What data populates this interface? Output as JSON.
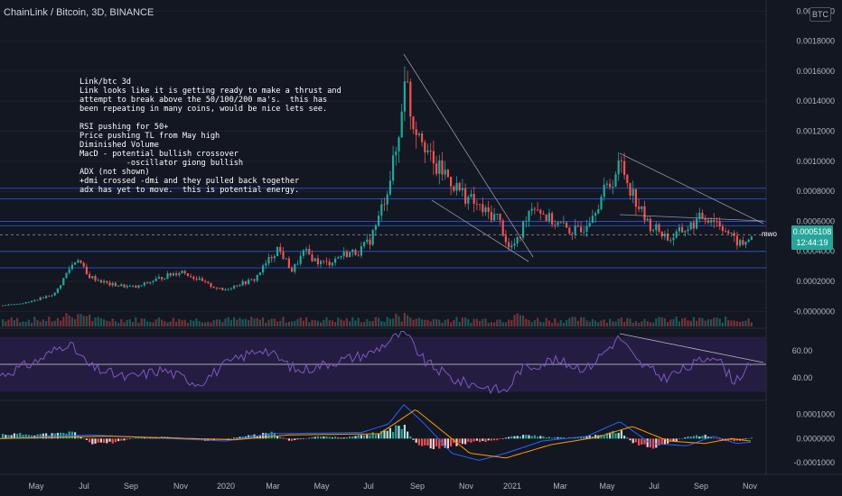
{
  "header": {
    "symbol": "ChainLink / Bitcoin, 3D, BINANCE",
    "currency": "BTC"
  },
  "note_lines": [
    "Link/btc 3d",
    "Link looks like it is getting ready to make a thrust and",
    "attempt to break above the 50/100/200 ma's.  this has",
    "been repeating in many coins, would be nice lets see.",
    "",
    "RSI pushing for 50+",
    "Price pushing TL from May high",
    "Diminished Volume",
    "MacD - potential bullish crossover",
    "          -oscillator giong bullish",
    "ADX (not shown)",
    "+dmi crossed -dmi and they pulled back together",
    "adx has yet to move.  this is potential energy."
  ],
  "price_badge": {
    "value": "0.0005108",
    "countdown": "12:44:19",
    "color": "#26a69a"
  },
  "mwo_label": "mwo",
  "colors": {
    "background": "#131722",
    "up": "#26a69a",
    "down": "#ef5350",
    "rsi": "#7e57c2",
    "rsi_band": "#2a1f4a",
    "macd": "#2962ff",
    "signal": "#ff9800",
    "hline": "#2962ff",
    "trend": "#b2b5be"
  },
  "chart_data": [
    {
      "type": "candlestick",
      "panel": "price",
      "y_ticks": [
        "0.0020000",
        "0.0018000",
        "0.0016000",
        "0.0014000",
        "0.0012000",
        "0.0010000",
        "0.0008000",
        "0.0006000",
        "0.0004000",
        "0.0002000",
        "-0.0000000"
      ],
      "x_tick_labels": [
        "May",
        "Jul",
        "Sep",
        "Nov",
        "2020",
        "Mar",
        "May",
        "Jul",
        "Sep",
        "Nov",
        "2021",
        "Mar",
        "May",
        "Jul",
        "Sep",
        "Nov"
      ],
      "ylim": [
        -0.0001,
        0.00205
      ],
      "close_path": [
        [
          0,
          4e-05
        ],
        [
          30,
          6e-05
        ],
        [
          60,
          0.00012
        ],
        [
          75,
          0.00028
        ],
        [
          85,
          0.00036
        ],
        [
          95,
          0.00024
        ],
        [
          120,
          0.00018
        ],
        [
          150,
          0.00016
        ],
        [
          175,
          0.00022
        ],
        [
          200,
          0.00027
        ],
        [
          225,
          0.00019
        ],
        [
          245,
          0.00014
        ],
        [
          262,
          0.00018
        ],
        [
          280,
          0.00021
        ],
        [
          296,
          0.00034
        ],
        [
          306,
          0.00042
        ],
        [
          312,
          0.00037
        ],
        [
          322,
          0.00027
        ],
        [
          336,
          0.0004
        ],
        [
          350,
          0.00033
        ],
        [
          362,
          0.00032
        ],
        [
          378,
          0.00038
        ],
        [
          396,
          0.0004
        ],
        [
          408,
          0.00047
        ],
        [
          418,
          0.00062
        ],
        [
          428,
          0.00083
        ],
        [
          440,
          0.00113
        ],
        [
          447,
          0.00162
        ],
        [
          455,
          0.00126
        ],
        [
          465,
          0.00121
        ],
        [
          478,
          0.00096
        ],
        [
          490,
          0.00093
        ],
        [
          505,
          0.00082
        ],
        [
          520,
          0.00074
        ],
        [
          535,
          0.00066
        ],
        [
          550,
          0.00063
        ],
        [
          562,
          0.00042
        ],
        [
          573,
          0.00047
        ],
        [
          582,
          0.00066
        ],
        [
          590,
          0.00072
        ],
        [
          605,
          0.00062
        ],
        [
          617,
          0.00058
        ],
        [
          630,
          0.00054
        ],
        [
          642,
          0.00053
        ],
        [
          654,
          0.00066
        ],
        [
          668,
          0.0008
        ],
        [
          676,
          0.00087
        ],
        [
          686,
          0.00099
        ],
        [
          694,
          0.00086
        ],
        [
          705,
          0.00071
        ],
        [
          716,
          0.00058
        ],
        [
          728,
          0.00054
        ],
        [
          740,
          0.00048
        ],
        [
          752,
          0.00053
        ],
        [
          764,
          0.00057
        ],
        [
          776,
          0.00063
        ],
        [
          788,
          0.00062
        ],
        [
          800,
          0.00056
        ],
        [
          812,
          0.00047
        ],
        [
          822,
          0.00044
        ],
        [
          830,
          0.00051
        ]
      ],
      "horizontal_levels": [
        0.00082,
        0.00075,
        0.0006,
        0.00057,
        0.0004,
        0.00029
      ],
      "last_price": 0.0005108
    },
    {
      "type": "line",
      "panel": "rsi",
      "y_ticks": [
        "60.00",
        "40.00"
      ],
      "ylim": [
        25,
        75
      ],
      "band": [
        30,
        70
      ],
      "midline": 50,
      "path": [
        [
          0,
          42
        ],
        [
          40,
          52
        ],
        [
          75,
          66
        ],
        [
          100,
          48
        ],
        [
          140,
          40
        ],
        [
          180,
          46
        ],
        [
          220,
          36
        ],
        [
          250,
          50
        ],
        [
          290,
          62
        ],
        [
          330,
          45
        ],
        [
          370,
          52
        ],
        [
          410,
          58
        ],
        [
          447,
          74
        ],
        [
          470,
          52
        ],
        [
          505,
          38
        ],
        [
          535,
          34
        ],
        [
          560,
          30
        ],
        [
          575,
          46
        ],
        [
          610,
          53
        ],
        [
          650,
          47
        ],
        [
          686,
          70
        ],
        [
          705,
          52
        ],
        [
          735,
          40
        ],
        [
          760,
          47
        ],
        [
          790,
          58
        ],
        [
          812,
          38
        ],
        [
          830,
          48
        ]
      ]
    },
    {
      "type": "histogram+line",
      "panel": "macd",
      "y_ticks": [
        "0.0001000",
        "0.0000000",
        "-0.0001000"
      ],
      "ylim": [
        -0.00014,
        0.00015
      ],
      "histogram": [
        [
          60,
          2e-05
        ],
        [
          80,
          3e-05
        ],
        [
          100,
          -2e-05
        ],
        [
          120,
          -2e-05
        ],
        [
          150,
          5e-06
        ],
        [
          190,
          8e-06
        ],
        [
          230,
          -1e-05
        ],
        [
          270,
          1e-05
        ],
        [
          300,
          2.5e-05
        ],
        [
          320,
          -1e-05
        ],
        [
          350,
          1e-05
        ],
        [
          380,
          5e-06
        ],
        [
          410,
          2e-05
        ],
        [
          430,
          4e-05
        ],
        [
          445,
          6e-05
        ],
        [
          460,
          -3e-05
        ],
        [
          480,
          -5e-05
        ],
        [
          500,
          -3e-05
        ],
        [
          520,
          -1.5e-05
        ],
        [
          545,
          -1e-05
        ],
        [
          565,
          1e-05
        ],
        [
          585,
          1.5e-05
        ],
        [
          610,
          5e-06
        ],
        [
          640,
          5e-06
        ],
        [
          670,
          2e-05
        ],
        [
          686,
          3.5e-05
        ],
        [
          700,
          -2e-05
        ],
        [
          720,
          -4e-05
        ],
        [
          740,
          -2e-05
        ],
        [
          760,
          1e-05
        ],
        [
          780,
          1.5e-05
        ],
        [
          800,
          -1e-05
        ],
        [
          820,
          -1e-05
        ],
        [
          830,
          5e-06
        ]
      ],
      "macd_path": [
        [
          0,
          0
        ],
        [
          100,
          1.5e-05
        ],
        [
          250,
          -1e-05
        ],
        [
          300,
          2e-05
        ],
        [
          400,
          2.5e-05
        ],
        [
          430,
          6e-05
        ],
        [
          447,
          0.00014
        ],
        [
          470,
          6e-05
        ],
        [
          500,
          -6e-05
        ],
        [
          530,
          -9e-05
        ],
        [
          560,
          -6e-05
        ],
        [
          600,
          -1e-05
        ],
        [
          650,
          1e-05
        ],
        [
          686,
          7e-05
        ],
        [
          720,
          -2e-05
        ],
        [
          760,
          -3e-05
        ],
        [
          790,
          1e-05
        ],
        [
          815,
          -2e-05
        ],
        [
          830,
          -1.5e-05
        ]
      ],
      "signal_path": [
        [
          0,
          0
        ],
        [
          120,
          1e-05
        ],
        [
          260,
          -5e-06
        ],
        [
          320,
          1.5e-05
        ],
        [
          420,
          2e-05
        ],
        [
          460,
          0.00012
        ],
        [
          480,
          6e-05
        ],
        [
          520,
          -6e-05
        ],
        [
          560,
          -8e-05
        ],
        [
          610,
          -2.5e-05
        ],
        [
          660,
          5e-06
        ],
        [
          700,
          5e-05
        ],
        [
          740,
          -1e-05
        ],
        [
          780,
          -2e-05
        ],
        [
          810,
          0
        ],
        [
          830,
          -1e-05
        ]
      ]
    }
  ]
}
